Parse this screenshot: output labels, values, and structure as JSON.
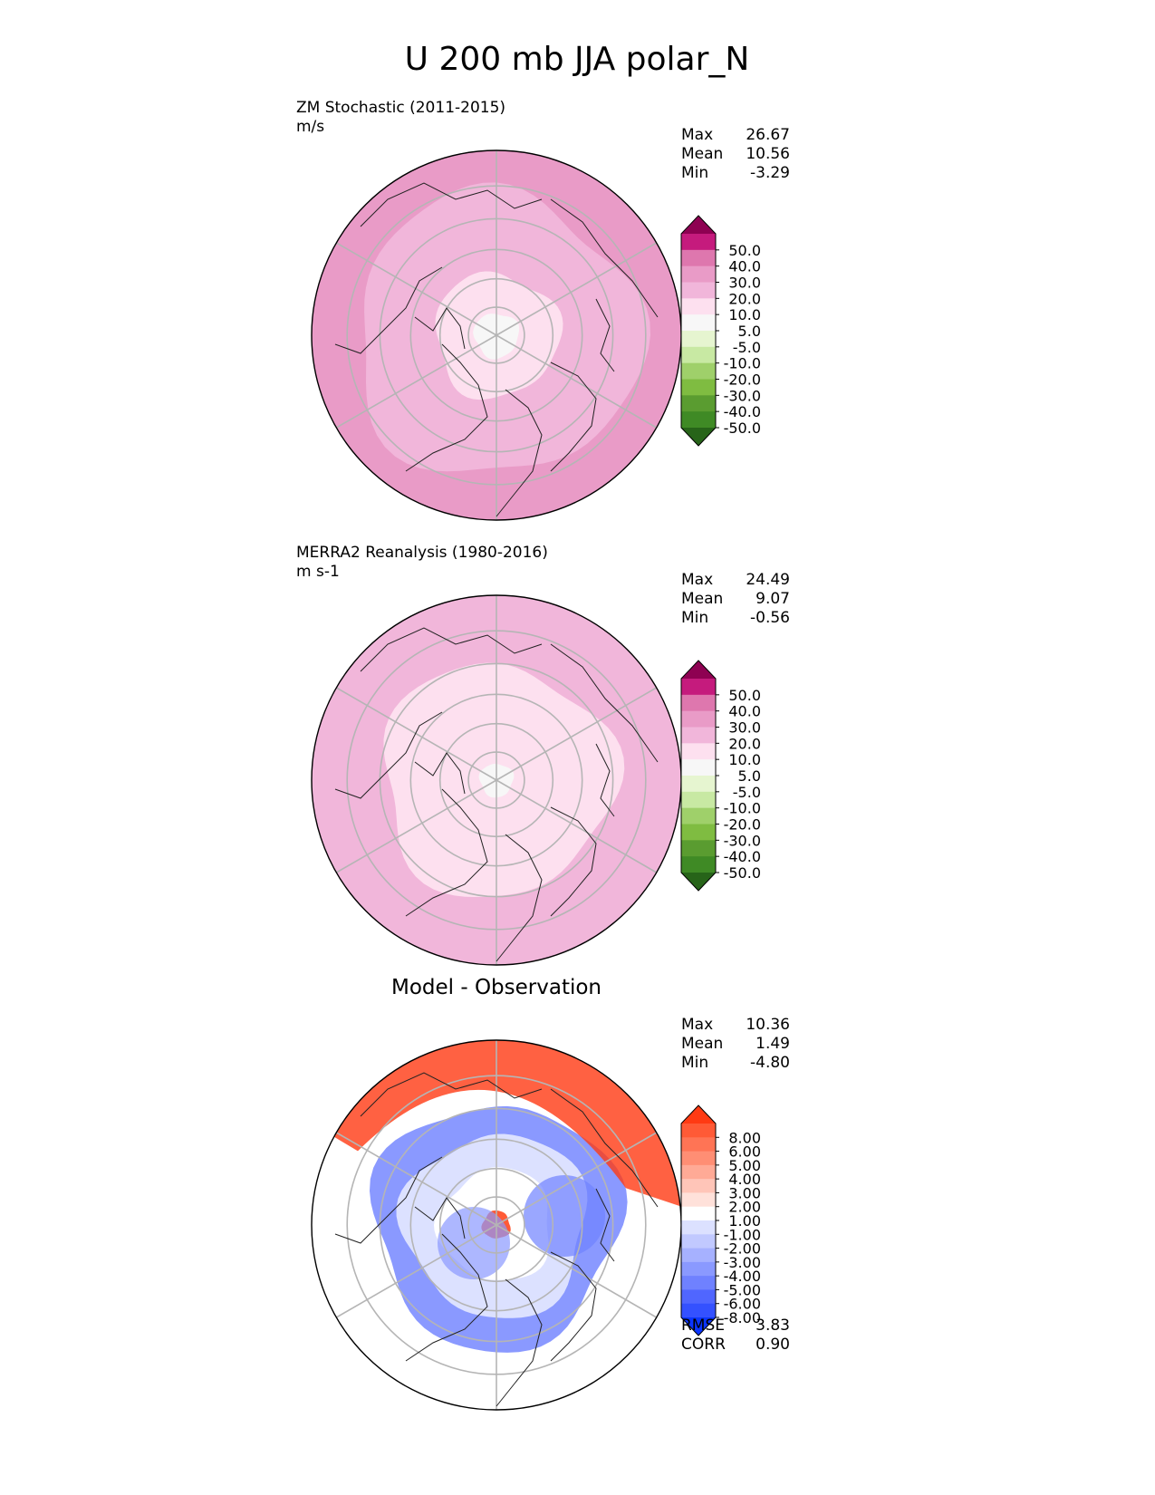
{
  "figure_title": "U 200 mb JJA polar_N",
  "chart_data": [
    {
      "type": "heatmap",
      "projection": "north-polar-stereographic",
      "title": "ZM Stochastic (2011-2015)",
      "units": "m/s",
      "stats": [
        {
          "label": "Max",
          "value": "26.67"
        },
        {
          "label": "Mean",
          "value": "10.56"
        },
        {
          "label": "Min",
          "value": "-3.29"
        }
      ],
      "colorbar": {
        "extend": "both",
        "tick_labels": [
          "50.0",
          "40.0",
          "30.0",
          "20.0",
          "10.0",
          "5.0",
          "-5.0",
          "-10.0",
          "-20.0",
          "-30.0",
          "-40.0",
          "-50.0"
        ],
        "colors": [
          "#8e0152",
          "#c51b7d",
          "#de77ae",
          "#e99bc7",
          "#f1b6da",
          "#fde0ef",
          "#f7f7f7",
          "#e6f5d0",
          "#c8e9a3",
          "#9fd06a",
          "#7fbc41",
          "#5a9c30",
          "#3f8a25",
          "#276419"
        ]
      },
      "field_levels_ms": [
        {
          "min_latitude": 82,
          "mean_wind": "-5 to 5"
        },
        {
          "min_latitude": 68,
          "mean_wind": "5 to 10"
        },
        {
          "min_latitude": 42,
          "mean_wind": "10 to 20"
        },
        {
          "min_latitude": 30,
          "mean_wind": "20 to 30"
        }
      ]
    },
    {
      "type": "heatmap",
      "projection": "north-polar-stereographic",
      "title": "MERRA2 Reanalysis (1980-2016)",
      "units": "m s-1",
      "stats": [
        {
          "label": "Max",
          "value": "24.49"
        },
        {
          "label": "Mean",
          "value": "9.07"
        },
        {
          "label": "Min",
          "value": "-0.56"
        }
      ],
      "colorbar": {
        "extend": "both",
        "tick_labels": [
          "50.0",
          "40.0",
          "30.0",
          "20.0",
          "10.0",
          "5.0",
          "-5.0",
          "-10.0",
          "-20.0",
          "-30.0",
          "-40.0",
          "-50.0"
        ],
        "colors": [
          "#8e0152",
          "#c51b7d",
          "#de77ae",
          "#e99bc7",
          "#f1b6da",
          "#fde0ef",
          "#f7f7f7",
          "#e6f5d0",
          "#c8e9a3",
          "#9fd06a",
          "#7fbc41",
          "#5a9c30",
          "#3f8a25",
          "#276419"
        ]
      },
      "field_levels_ms": [
        {
          "min_latitude": 84,
          "mean_wind": "-5 to 5"
        },
        {
          "min_latitude": 50,
          "mean_wind": "5 to 10"
        },
        {
          "min_latitude": 30,
          "mean_wind": "10 to 20"
        }
      ]
    },
    {
      "type": "heatmap",
      "projection": "north-polar-stereographic",
      "title": "Model - Observation",
      "stats": [
        {
          "label": "Max",
          "value": "10.36"
        },
        {
          "label": "Mean",
          "value": "1.49"
        },
        {
          "label": "Min",
          "value": "-4.80"
        }
      ],
      "colorbar": {
        "extend": "both",
        "tick_labels": [
          "8.00",
          "6.00",
          "5.00",
          "4.00",
          "3.00",
          "2.00",
          "1.00",
          "-1.00",
          "-2.00",
          "-3.00",
          "-4.00",
          "-5.00",
          "-6.00",
          "-8.00"
        ],
        "colors": [
          "#ff3a13",
          "#ff5a36",
          "#ff7455",
          "#ff8e74",
          "#ffaa96",
          "#ffc5b8",
          "#ffe1da",
          "#ffffff",
          "#dce1ff",
          "#c1c9ff",
          "#a6b1ff",
          "#8a99ff",
          "#6f81ff",
          "#5066ff",
          "#3451ff",
          "#0b35ff"
        ]
      },
      "field_levels_ms": [
        {
          "min_latitude": 85,
          "mean_difference": "1 to -1"
        },
        {
          "min_latitude": 70,
          "mean_difference": "-2 to -4"
        },
        {
          "min_latitude": 58,
          "mean_difference": "-1 to -2"
        },
        {
          "min_latitude": 48,
          "mean_difference": "-1 to 1"
        },
        {
          "min_latitude": 30,
          "mean_difference": "2 to 8"
        }
      ],
      "bottom_stats": [
        {
          "label": "RMSE",
          "value": "3.83"
        },
        {
          "label": "CORR",
          "value": "0.90"
        }
      ]
    }
  ]
}
